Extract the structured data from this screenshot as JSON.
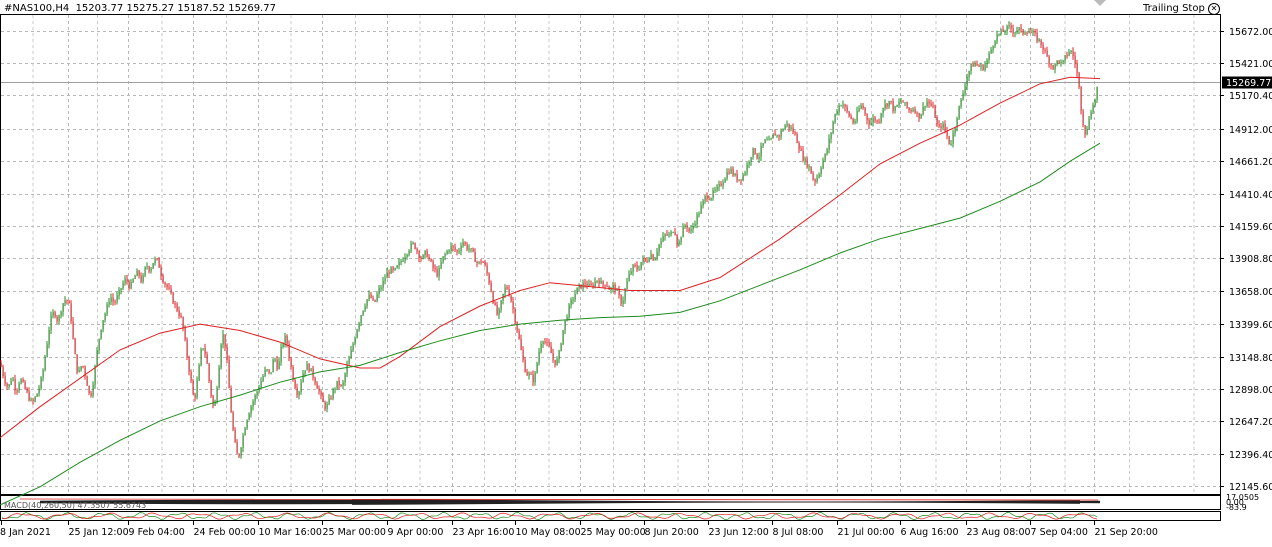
{
  "header": {
    "symbol": "#NAS100,H4",
    "ohlc": "15203.77 15275.27 15187.52 15269.77",
    "trailing_stop_label": "Trailing Stop",
    "trailing_stop_icon": "close-circle-icon"
  },
  "indicator_label": "MACD(40,260,50) 47.3507 55.6743",
  "chart_data": {
    "type": "line",
    "subtype": "candlestick",
    "title": "#NAS100,H4",
    "xlabel": "",
    "ylabel": "",
    "ylim": [
      12100,
      15800
    ],
    "grid": true,
    "current_price": 15269.77,
    "y_ticks": [
      15672.0,
      15421.0,
      15170.4,
      14912.0,
      14661.2,
      14410.4,
      14159.6,
      13908.8,
      13658.0,
      13399.6,
      13148.8,
      12898.0,
      12647.2,
      12396.4,
      12145.6
    ],
    "x_ticks": [
      "8 Jan 2021",
      "25 Jan 12:00",
      "9 Feb 04:00",
      "24 Feb 00:00",
      "10 Mar 16:00",
      "25 Mar 00:00",
      "9 Apr 00:00",
      "23 Apr 16:00",
      "10 May 08:00",
      "25 May 00:00",
      "8 Jun 20:00",
      "23 Jun 12:00",
      "8 Jul 08:00",
      "21 Jul 00:00",
      "6 Aug 16:00",
      "23 Aug 08:00",
      "7 Sep 04:00",
      "21 Sep 20:00"
    ],
    "price_path": [
      [
        0,
        13100
      ],
      [
        4,
        12980
      ],
      [
        8,
        12900
      ],
      [
        12,
        13000
      ],
      [
        16,
        12880
      ],
      [
        20,
        12980
      ],
      [
        26,
        12880
      ],
      [
        32,
        12780
      ],
      [
        38,
        12880
      ],
      [
        42,
        12990
      ],
      [
        46,
        13200
      ],
      [
        50,
        13420
      ],
      [
        54,
        13500
      ],
      [
        58,
        13420
      ],
      [
        62,
        13550
      ],
      [
        66,
        13600
      ],
      [
        70,
        13520
      ],
      [
        74,
        13200
      ],
      [
        78,
        13000
      ],
      [
        82,
        13100
      ],
      [
        86,
        12980
      ],
      [
        90,
        12820
      ],
      [
        94,
        13000
      ],
      [
        98,
        13250
      ],
      [
        102,
        13420
      ],
      [
        106,
        13500
      ],
      [
        110,
        13620
      ],
      [
        114,
        13560
      ],
      [
        118,
        13620
      ],
      [
        122,
        13700
      ],
      [
        126,
        13750
      ],
      [
        130,
        13680
      ],
      [
        134,
        13760
      ],
      [
        138,
        13800
      ],
      [
        142,
        13720
      ],
      [
        146,
        13860
      ],
      [
        150,
        13820
      ],
      [
        154,
        13900
      ],
      [
        158,
        13880
      ],
      [
        162,
        13760
      ],
      [
        166,
        13700
      ],
      [
        170,
        13640
      ],
      [
        174,
        13560
      ],
      [
        178,
        13500
      ],
      [
        182,
        13420
      ],
      [
        186,
        13200
      ],
      [
        190,
        13000
      ],
      [
        194,
        12800
      ],
      [
        198,
        13000
      ],
      [
        202,
        13250
      ],
      [
        206,
        13150
      ],
      [
        210,
        12900
      ],
      [
        214,
        12720
      ],
      [
        218,
        13000
      ],
      [
        222,
        13350
      ],
      [
        226,
        13200
      ],
      [
        230,
        12800
      ],
      [
        234,
        12500
      ],
      [
        238,
        12350
      ],
      [
        242,
        12500
      ],
      [
        246,
        12650
      ],
      [
        250,
        12750
      ],
      [
        254,
        12820
      ],
      [
        258,
        12900
      ],
      [
        262,
        12980
      ],
      [
        266,
        13050
      ],
      [
        270,
        13000
      ],
      [
        274,
        13150
      ],
      [
        278,
        13050
      ],
      [
        282,
        13250
      ],
      [
        286,
        13300
      ],
      [
        290,
        13100
      ],
      [
        294,
        12950
      ],
      [
        298,
        12850
      ],
      [
        302,
        13000
      ],
      [
        306,
        13080
      ],
      [
        310,
        13050
      ],
      [
        314,
        12980
      ],
      [
        318,
        12900
      ],
      [
        322,
        12800
      ],
      [
        326,
        12750
      ],
      [
        330,
        12820
      ],
      [
        334,
        12900
      ],
      [
        338,
        12950
      ],
      [
        342,
        12900
      ],
      [
        346,
        13050
      ],
      [
        350,
        13150
      ],
      [
        354,
        13280
      ],
      [
        358,
        13400
      ],
      [
        362,
        13500
      ],
      [
        366,
        13580
      ],
      [
        370,
        13620
      ],
      [
        374,
        13550
      ],
      [
        378,
        13650
      ],
      [
        382,
        13700
      ],
      [
        386,
        13780
      ],
      [
        390,
        13820
      ],
      [
        394,
        13800
      ],
      [
        398,
        13850
      ],
      [
        402,
        13900
      ],
      [
        406,
        13950
      ],
      [
        410,
        14000
      ],
      [
        414,
        14020
      ],
      [
        418,
        13950
      ],
      [
        422,
        13900
      ],
      [
        426,
        13960
      ],
      [
        430,
        13880
      ],
      [
        434,
        13820
      ],
      [
        438,
        13780
      ],
      [
        442,
        13900
      ],
      [
        446,
        13950
      ],
      [
        450,
        14000
      ],
      [
        454,
        13980
      ],
      [
        458,
        13950
      ],
      [
        462,
        14050
      ],
      [
        466,
        14000
      ],
      [
        470,
        13980
      ],
      [
        474,
        13920
      ],
      [
        478,
        13860
      ],
      [
        482,
        13900
      ],
      [
        486,
        13820
      ],
      [
        490,
        13700
      ],
      [
        494,
        13550
      ],
      [
        498,
        13450
      ],
      [
        502,
        13600
      ],
      [
        506,
        13700
      ],
      [
        510,
        13620
      ],
      [
        514,
        13480
      ],
      [
        518,
        13320
      ],
      [
        522,
        13150
      ],
      [
        526,
        13020
      ],
      [
        530,
        13000
      ],
      [
        534,
        12960
      ],
      [
        538,
        13150
      ],
      [
        542,
        13300
      ],
      [
        546,
        13250
      ],
      [
        550,
        13200
      ],
      [
        554,
        13100
      ],
      [
        558,
        13120
      ],
      [
        562,
        13320
      ],
      [
        566,
        13450
      ],
      [
        570,
        13550
      ],
      [
        574,
        13620
      ],
      [
        578,
        13680
      ],
      [
        582,
        13700
      ],
      [
        586,
        13720
      ],
      [
        590,
        13680
      ],
      [
        594,
        13720
      ],
      [
        598,
        13750
      ],
      [
        602,
        13700
      ],
      [
        606,
        13720
      ],
      [
        610,
        13660
      ],
      [
        614,
        13700
      ],
      [
        618,
        13620
      ],
      [
        622,
        13560
      ],
      [
        626,
        13700
      ],
      [
        630,
        13800
      ],
      [
        634,
        13850
      ],
      [
        638,
        13820
      ],
      [
        642,
        13900
      ],
      [
        646,
        13880
      ],
      [
        650,
        13950
      ],
      [
        654,
        13900
      ],
      [
        658,
        14000
      ],
      [
        662,
        14050
      ],
      [
        666,
        14100
      ],
      [
        670,
        14080
      ],
      [
        674,
        14150
      ],
      [
        678,
        14000
      ],
      [
        682,
        14120
      ],
      [
        686,
        14180
      ],
      [
        690,
        14100
      ],
      [
        694,
        14180
      ],
      [
        698,
        14250
      ],
      [
        702,
        14320
      ],
      [
        706,
        14400
      ],
      [
        710,
        14380
      ],
      [
        714,
        14420
      ],
      [
        718,
        14450
      ],
      [
        722,
        14500
      ],
      [
        726,
        14560
      ],
      [
        730,
        14600
      ],
      [
        734,
        14550
      ],
      [
        738,
        14520
      ],
      [
        742,
        14540
      ],
      [
        746,
        14600
      ],
      [
        750,
        14700
      ],
      [
        754,
        14750
      ],
      [
        758,
        14680
      ],
      [
        762,
        14780
      ],
      [
        766,
        14820
      ],
      [
        770,
        14800
      ],
      [
        774,
        14880
      ],
      [
        778,
        14850
      ],
      [
        782,
        14900
      ],
      [
        786,
        14950
      ],
      [
        790,
        14920
      ],
      [
        794,
        14880
      ],
      [
        798,
        14800
      ],
      [
        802,
        14700
      ],
      [
        806,
        14650
      ],
      [
        810,
        14600
      ],
      [
        814,
        14500
      ],
      [
        818,
        14550
      ],
      [
        822,
        14650
      ],
      [
        826,
        14720
      ],
      [
        830,
        14850
      ],
      [
        834,
        15000
      ],
      [
        838,
        15080
      ],
      [
        842,
        15120
      ],
      [
        846,
        15050
      ],
      [
        850,
        15000
      ],
      [
        854,
        14950
      ],
      [
        858,
        15050
      ],
      [
        862,
        15100
      ],
      [
        866,
        15000
      ],
      [
        870,
        14950
      ],
      [
        874,
        15000
      ],
      [
        878,
        14950
      ],
      [
        882,
        15080
      ],
      [
        886,
        15100
      ],
      [
        890,
        15130
      ],
      [
        894,
        15050
      ],
      [
        898,
        15100
      ],
      [
        902,
        15130
      ],
      [
        906,
        15080
      ],
      [
        910,
        15050
      ],
      [
        914,
        15080
      ],
      [
        918,
        15000
      ],
      [
        922,
        15050
      ],
      [
        926,
        15130
      ],
      [
        930,
        15100
      ],
      [
        934,
        15050
      ],
      [
        938,
        14900
      ],
      [
        942,
        14950
      ],
      [
        946,
        14880
      ],
      [
        950,
        14780
      ],
      [
        954,
        14900
      ],
      [
        958,
        15050
      ],
      [
        962,
        15150
      ],
      [
        966,
        15300
      ],
      [
        970,
        15380
      ],
      [
        974,
        15420
      ],
      [
        978,
        15400
      ],
      [
        982,
        15380
      ],
      [
        986,
        15420
      ],
      [
        990,
        15500
      ],
      [
        994,
        15600
      ],
      [
        998,
        15640
      ],
      [
        1002,
        15660
      ],
      [
        1006,
        15680
      ],
      [
        1010,
        15700
      ],
      [
        1014,
        15660
      ],
      [
        1018,
        15690
      ],
      [
        1022,
        15650
      ],
      [
        1026,
        15680
      ],
      [
        1030,
        15660
      ],
      [
        1034,
        15640
      ],
      [
        1038,
        15600
      ],
      [
        1042,
        15560
      ],
      [
        1046,
        15480
      ],
      [
        1050,
        15420
      ],
      [
        1054,
        15380
      ],
      [
        1058,
        15450
      ],
      [
        1062,
        15400
      ],
      [
        1066,
        15480
      ],
      [
        1070,
        15520
      ],
      [
        1074,
        15460
      ],
      [
        1078,
        15300
      ],
      [
        1082,
        15000
      ],
      [
        1086,
        14850
      ],
      [
        1090,
        15050
      ],
      [
        1094,
        15100
      ],
      [
        1098,
        15270
      ]
    ],
    "series": [
      {
        "name": "",
        "color": "#e02020",
        "points": [
          [
            0,
            12520
          ],
          [
            40,
            12760
          ],
          [
            80,
            12980
          ],
          [
            120,
            13200
          ],
          [
            160,
            13330
          ],
          [
            200,
            13400
          ],
          [
            240,
            13350
          ],
          [
            280,
            13260
          ],
          [
            320,
            13130
          ],
          [
            360,
            13060
          ],
          [
            380,
            13060
          ],
          [
            400,
            13150
          ],
          [
            440,
            13380
          ],
          [
            480,
            13540
          ],
          [
            520,
            13660
          ],
          [
            550,
            13720
          ],
          [
            590,
            13690
          ],
          [
            630,
            13660
          ],
          [
            680,
            13660
          ],
          [
            720,
            13760
          ],
          [
            780,
            14060
          ],
          [
            840,
            14400
          ],
          [
            880,
            14640
          ],
          [
            920,
            14800
          ],
          [
            960,
            14940
          ],
          [
            1000,
            15110
          ],
          [
            1040,
            15260
          ],
          [
            1070,
            15310
          ],
          [
            1100,
            15300
          ]
        ]
      },
      {
        "name": "",
        "color": "#1e8c1e",
        "points": [
          [
            0,
            12000
          ],
          [
            40,
            12140
          ],
          [
            80,
            12330
          ],
          [
            120,
            12500
          ],
          [
            160,
            12650
          ],
          [
            200,
            12760
          ],
          [
            240,
            12850
          ],
          [
            280,
            12950
          ],
          [
            320,
            13030
          ],
          [
            360,
            13080
          ],
          [
            400,
            13180
          ],
          [
            440,
            13270
          ],
          [
            480,
            13350
          ],
          [
            520,
            13400
          ],
          [
            560,
            13430
          ],
          [
            600,
            13450
          ],
          [
            640,
            13460
          ],
          [
            680,
            13490
          ],
          [
            720,
            13580
          ],
          [
            760,
            13700
          ],
          [
            800,
            13820
          ],
          [
            840,
            13950
          ],
          [
            880,
            14060
          ],
          [
            920,
            14140
          ],
          [
            960,
            14220
          ],
          [
            1000,
            14350
          ],
          [
            1040,
            14500
          ],
          [
            1070,
            14660
          ],
          [
            1100,
            14800
          ]
        ]
      }
    ],
    "macd": {
      "label": "MACD(40,260,50) 47.3507 55.6743",
      "right_tick_values": [
        "17.0505",
        "0.00",
        "-83.9"
      ]
    }
  }
}
